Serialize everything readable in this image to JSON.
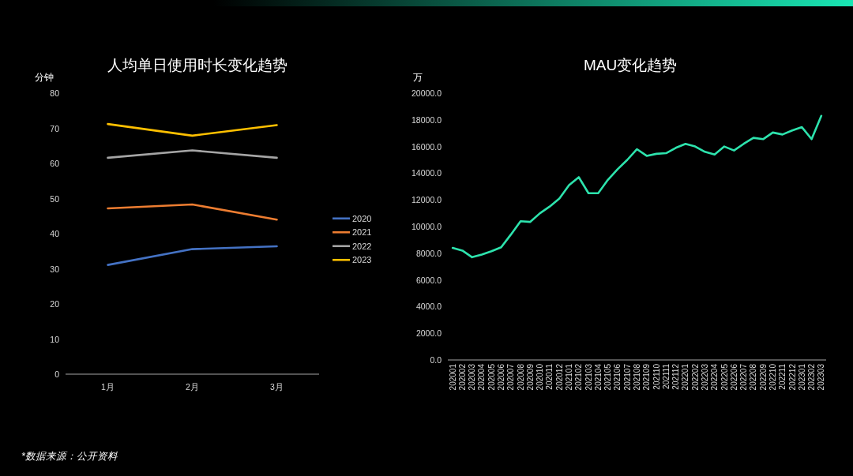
{
  "chart_data": [
    {
      "type": "line",
      "title": "人均单日使用时长变化趋势",
      "ylabel": "分钟",
      "categories": [
        "1月",
        "2月",
        "3月"
      ],
      "series": [
        {
          "name": "2020",
          "color": "#4472c4",
          "values": [
            31.1,
            35.6,
            36.4
          ]
        },
        {
          "name": "2021",
          "color": "#ed7d31",
          "values": [
            47.2,
            48.3,
            44.0
          ]
        },
        {
          "name": "2022",
          "color": "#a5a5a5",
          "values": [
            61.6,
            63.7,
            61.6
          ]
        },
        {
          "name": "2023",
          "color": "#ffc000",
          "values": [
            71.2,
            67.9,
            70.9
          ]
        }
      ],
      "ylim": [
        0,
        80
      ],
      "yticks": [
        0,
        10,
        20,
        30,
        40,
        50,
        60,
        70,
        80
      ],
      "legend": "right",
      "annotations": [
        "*数据来源：公开资料"
      ]
    },
    {
      "type": "line",
      "title": "MAU变化趋势",
      "ylabel": "万",
      "categories": [
        "202001",
        "202002",
        "202003",
        "202004",
        "202005",
        "202006",
        "202007",
        "202008",
        "202009",
        "202010",
        "202011",
        "202012",
        "202101",
        "202102",
        "202103",
        "202104",
        "202105",
        "202106",
        "202107",
        "202108",
        "202109",
        "202110",
        "202111",
        "202112",
        "202201",
        "202202",
        "202203",
        "202204",
        "202205",
        "202206",
        "202207",
        "202208",
        "202209",
        "202210",
        "202211",
        "202212",
        "202301",
        "202302",
        "202303"
      ],
      "series": [
        {
          "color": "#2de3ad",
          "values": [
            8400,
            8200,
            7700,
            7900,
            8150,
            8450,
            9400,
            10400,
            10350,
            11000,
            11500,
            12100,
            13100,
            13700,
            12500,
            12500,
            13500,
            14300,
            15000,
            15800,
            15300,
            15450,
            15500,
            15900,
            16200,
            16000,
            15600,
            15400,
            16000,
            15700,
            16200,
            16650,
            16550,
            17050,
            16900,
            17200,
            17450,
            16550,
            18300
          ]
        }
      ],
      "ylim": [
        0,
        20000
      ],
      "yticks": [
        {
          "value": 0,
          "label": "0.0"
        },
        {
          "value": 2000,
          "label": "2000.0"
        },
        {
          "value": 4000,
          "label": "4000.0"
        },
        {
          "value": 6000,
          "label": "6000.0"
        },
        {
          "value": 8000,
          "label": "8000.0"
        },
        {
          "value": 10000,
          "label": "10000.0"
        },
        {
          "value": 12000,
          "label": "12000.0"
        },
        {
          "value": 14000,
          "label": "14000.0"
        },
        {
          "value": 16000,
          "label": "16000.0"
        },
        {
          "value": 18000,
          "label": "18000.0"
        },
        {
          "value": 20000,
          "label": "20000.0"
        }
      ]
    }
  ]
}
